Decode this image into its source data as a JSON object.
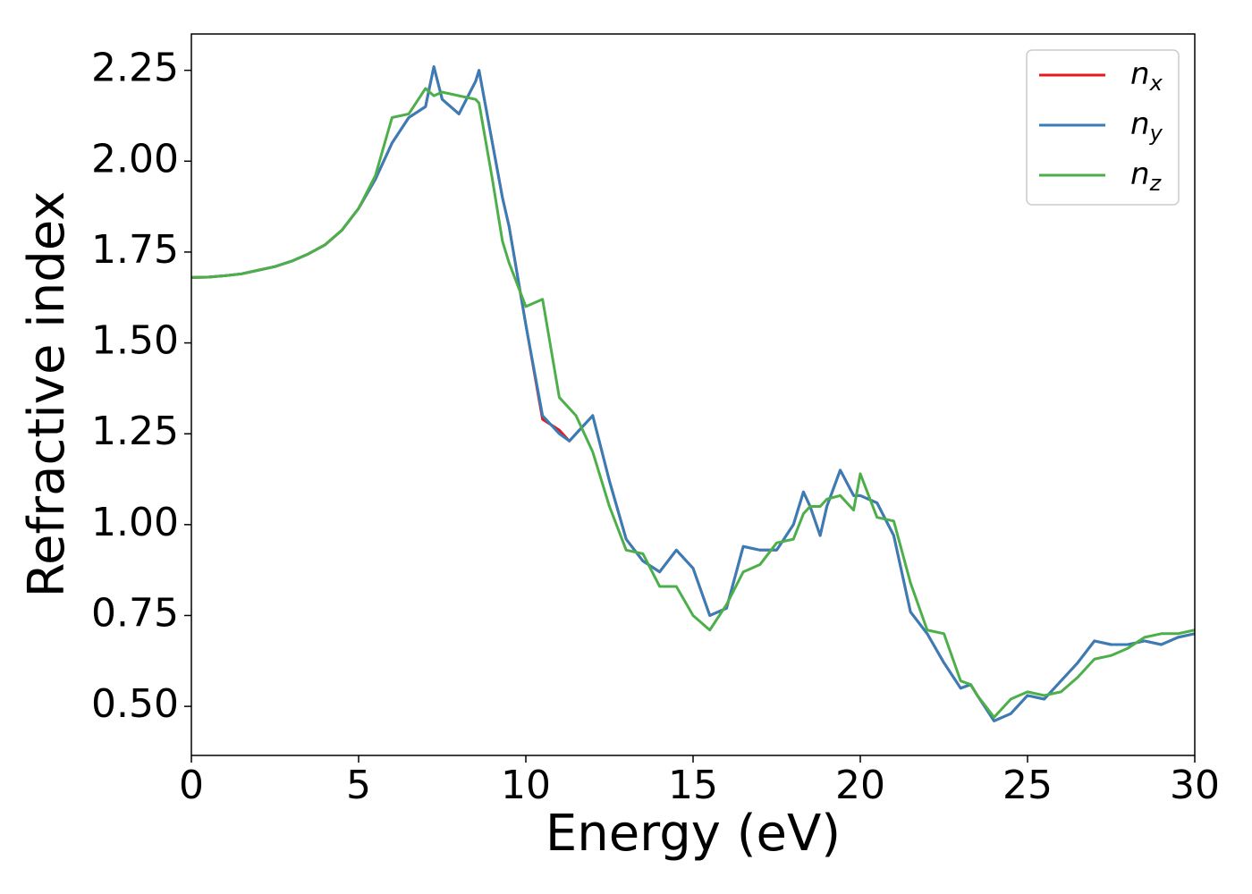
{
  "chart_data": {
    "type": "line",
    "xlabel": "Energy (eV)",
    "ylabel": "Refractive index",
    "x": [
      0,
      0.5,
      1,
      1.5,
      2,
      2.5,
      3,
      3.5,
      4,
      4.5,
      5,
      5.5,
      6,
      6.5,
      7,
      7.25,
      7.5,
      8,
      8.5,
      8.6,
      9,
      9.3,
      9.5,
      10,
      10.5,
      11,
      11.3,
      11.5,
      12,
      12.5,
      13,
      13.5,
      14,
      14.5,
      15,
      15.5,
      16,
      16.5,
      17,
      17.5,
      18,
      18.3,
      18.5,
      18.8,
      19,
      19.4,
      19.8,
      20,
      20.5,
      21,
      21.5,
      22,
      22.5,
      23,
      23.3,
      23.5,
      24,
      24.5,
      25,
      25.5,
      26,
      26.5,
      27,
      27.5,
      28,
      28.5,
      29,
      29.5,
      30
    ],
    "series": [
      {
        "name": "nx",
        "color": "#e41a1c",
        "values": [
          1.68,
          1.681,
          1.685,
          1.69,
          1.7,
          1.71,
          1.725,
          1.745,
          1.77,
          1.81,
          1.87,
          1.95,
          2.05,
          2.12,
          2.15,
          2.26,
          2.17,
          2.13,
          2.22,
          2.25,
          2.05,
          1.9,
          1.82,
          1.55,
          1.29,
          1.26,
          1.23,
          1.25,
          1.3,
          1.12,
          0.96,
          0.9,
          0.87,
          0.93,
          0.88,
          0.75,
          0.77,
          0.94,
          0.93,
          0.93,
          1.0,
          1.09,
          1.05,
          0.97,
          1.05,
          1.15,
          1.08,
          1.08,
          1.06,
          0.97,
          0.76,
          0.7,
          0.62,
          0.55,
          0.56,
          0.53,
          0.46,
          0.48,
          0.53,
          0.52,
          0.57,
          0.62,
          0.68,
          0.67,
          0.67,
          0.68,
          0.67,
          0.69,
          0.7
        ]
      },
      {
        "name": "ny",
        "color": "#377eb8",
        "values": [
          1.68,
          1.681,
          1.685,
          1.69,
          1.7,
          1.71,
          1.725,
          1.745,
          1.77,
          1.81,
          1.87,
          1.95,
          2.05,
          2.12,
          2.15,
          2.26,
          2.17,
          2.13,
          2.22,
          2.25,
          2.05,
          1.9,
          1.82,
          1.55,
          1.3,
          1.25,
          1.23,
          1.25,
          1.3,
          1.12,
          0.96,
          0.9,
          0.87,
          0.93,
          0.88,
          0.75,
          0.77,
          0.94,
          0.93,
          0.93,
          1.0,
          1.09,
          1.05,
          0.97,
          1.05,
          1.15,
          1.08,
          1.08,
          1.06,
          0.97,
          0.76,
          0.7,
          0.62,
          0.55,
          0.56,
          0.53,
          0.46,
          0.48,
          0.53,
          0.52,
          0.57,
          0.62,
          0.68,
          0.67,
          0.67,
          0.68,
          0.67,
          0.69,
          0.7
        ]
      },
      {
        "name": "nz",
        "color": "#4daf4a",
        "values": [
          1.68,
          1.681,
          1.685,
          1.69,
          1.7,
          1.71,
          1.725,
          1.745,
          1.77,
          1.81,
          1.87,
          1.96,
          2.12,
          2.13,
          2.2,
          2.18,
          2.19,
          2.18,
          2.17,
          2.16,
          1.95,
          1.78,
          1.72,
          1.6,
          1.62,
          1.35,
          1.32,
          1.3,
          1.2,
          1.05,
          0.93,
          0.92,
          0.83,
          0.83,
          0.75,
          0.71,
          0.78,
          0.87,
          0.89,
          0.95,
          0.96,
          1.03,
          1.05,
          1.05,
          1.07,
          1.08,
          1.04,
          1.14,
          1.02,
          1.01,
          0.84,
          0.71,
          0.7,
          0.57,
          0.56,
          0.53,
          0.47,
          0.52,
          0.54,
          0.53,
          0.54,
          0.58,
          0.63,
          0.64,
          0.66,
          0.69,
          0.7,
          0.7,
          0.71
        ]
      }
    ],
    "xlim": [
      0,
      30
    ],
    "xticks": [
      0,
      5,
      10,
      15,
      20,
      25,
      30
    ],
    "ylim": [
      0.365,
      2.35
    ],
    "yticks": [
      {
        "value": 0.5,
        "label": "0.50"
      },
      0.75,
      {
        "value": 1,
        "label": "1.00"
      },
      1.25,
      {
        "value": 1.5,
        "label": "1.50"
      },
      1.75,
      {
        "value": 2,
        "label": "2.00"
      },
      2.25
    ],
    "grid": false,
    "legend": "upper right"
  }
}
